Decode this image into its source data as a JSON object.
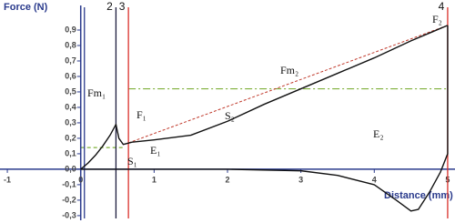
{
  "chart_data": {
    "type": "line",
    "y_axis_label": "Force (N)",
    "x_axis_label": "Distance (mm)",
    "xlim": [
      -1.1,
      5.1
    ],
    "ylim": [
      -0.33,
      1.0
    ],
    "xticks": [
      -1,
      0,
      1,
      2,
      3,
      4,
      5
    ],
    "yticks": [
      {
        "value": -0.3,
        "label": "-0,3"
      },
      {
        "value": -0.2,
        "label": "-0,2"
      },
      {
        "value": -0.1,
        "label": "-0,1"
      },
      {
        "value": 0,
        "label": "0,0"
      },
      {
        "value": 0.1,
        "label": "0,1"
      },
      {
        "value": 0.2,
        "label": "0,2"
      },
      {
        "value": 0.3,
        "label": "0,3"
      },
      {
        "value": 0.4,
        "label": "0,4"
      },
      {
        "value": 0.5,
        "label": "0,5"
      },
      {
        "value": 0.6,
        "label": "0,6"
      },
      {
        "value": 0.7,
        "label": "0,7"
      },
      {
        "value": 0.8,
        "label": "0,8"
      },
      {
        "value": 0.9,
        "label": "0,9"
      }
    ],
    "axis_color": "#2a3a8c",
    "series": [
      {
        "color": "#111111",
        "x": [
          0,
          0.1,
          0.2,
          0.3,
          0.4,
          0.48,
          0.52,
          0.58,
          0.7,
          1,
          1.5,
          2,
          2.5,
          3,
          3.5,
          4,
          4.5,
          4.8,
          5
        ],
        "values": [
          0,
          0.04,
          0.09,
          0.15,
          0.22,
          0.29,
          0.2,
          0.16,
          0.175,
          0.19,
          0.22,
          0.31,
          0.42,
          0.52,
          0.62,
          0.72,
          0.83,
          0.89,
          0.93
        ]
      },
      {
        "color": "#111111",
        "x": [
          5,
          5,
          4.9,
          4.75,
          4.6,
          4.5,
          4.3,
          4,
          3.5,
          3,
          2,
          1,
          0
        ],
        "values": [
          0.93,
          0.1,
          -0.02,
          -0.15,
          -0.26,
          -0.27,
          -0.2,
          -0.1,
          -0.04,
          -0.01,
          0,
          0,
          0
        ]
      }
    ],
    "vlines": [
      {
        "x": 0.05,
        "color": "#2a3a8c"
      },
      {
        "x": 0.48,
        "label": "2",
        "color": "#1c1c3c"
      },
      {
        "x": 0.65,
        "label": "3",
        "color": "#d9302a"
      },
      {
        "x": 5,
        "label": "4",
        "color": "#d9302a"
      }
    ],
    "hlines": [
      {
        "y": 0.52,
        "x": [
          0.65,
          5
        ],
        "color": "#7fb03a",
        "dash": "8 3 2 3"
      },
      {
        "y": 0.14,
        "x": [
          0,
          0.6
        ],
        "color": "#7fb03a",
        "dash": "4 3"
      }
    ],
    "guides": [
      {
        "x": [
          0.65,
          5
        ],
        "y": [
          0.17,
          0.93
        ],
        "color": "#c0392b",
        "dash": "3 2"
      }
    ],
    "annotations": [
      "Fm₁",
      "F₁",
      "S₁",
      "E₁",
      "S₂",
      "Fm₂",
      "E₂",
      "F₂"
    ]
  }
}
